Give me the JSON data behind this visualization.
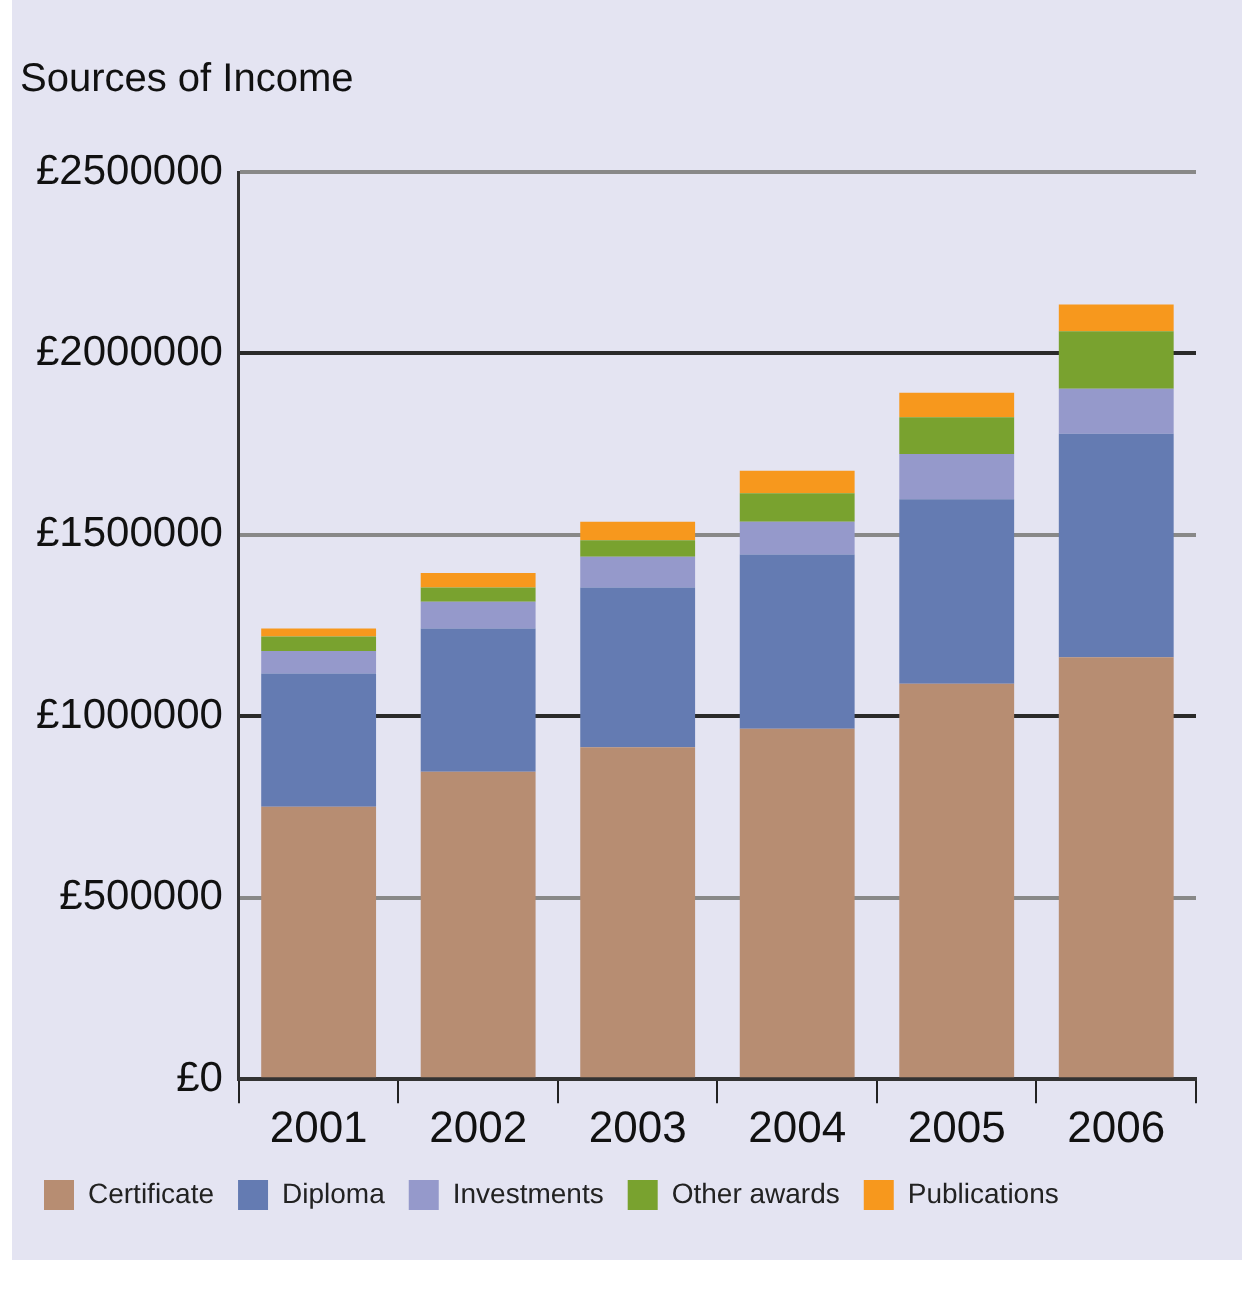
{
  "chart_data": {
    "type": "bar",
    "title": "Sources of Income",
    "stacked": true,
    "categories": [
      "2001",
      "2002",
      "2003",
      "2004",
      "2005",
      "2006"
    ],
    "series": [
      {
        "name": "Certificate",
        "color": "#b78d72",
        "values": [
          751000,
          847000,
          915000,
          966000,
          1090000,
          1163000
        ]
      },
      {
        "name": "Diploma",
        "color": "#647bb2",
        "values": [
          367000,
          395000,
          440000,
          480000,
          508000,
          616000
        ]
      },
      {
        "name": "Investments",
        "color": "#9599cb",
        "values": [
          62000,
          74000,
          85000,
          90000,
          125000,
          124000
        ]
      },
      {
        "name": "Other awards",
        "color": "#79a22f",
        "values": [
          40000,
          39000,
          45000,
          79000,
          101000,
          158000
        ]
      },
      {
        "name": "Publications",
        "color": "#f7981d",
        "values": [
          22000,
          40000,
          51000,
          62000,
          68000,
          74000
        ]
      }
    ],
    "ylim": [
      0,
      2500000
    ],
    "yticks": [
      {
        "value": 0,
        "label": "£0"
      },
      {
        "value": 500000,
        "label": "£500000"
      },
      {
        "value": 1000000,
        "label": "£1000000"
      },
      {
        "value": 1500000,
        "label": "£1500000"
      },
      {
        "value": 2000000,
        "label": "£2000000"
      },
      {
        "value": 2500000,
        "label": "£2500000"
      }
    ],
    "grid": "y",
    "legend": "bottom"
  }
}
